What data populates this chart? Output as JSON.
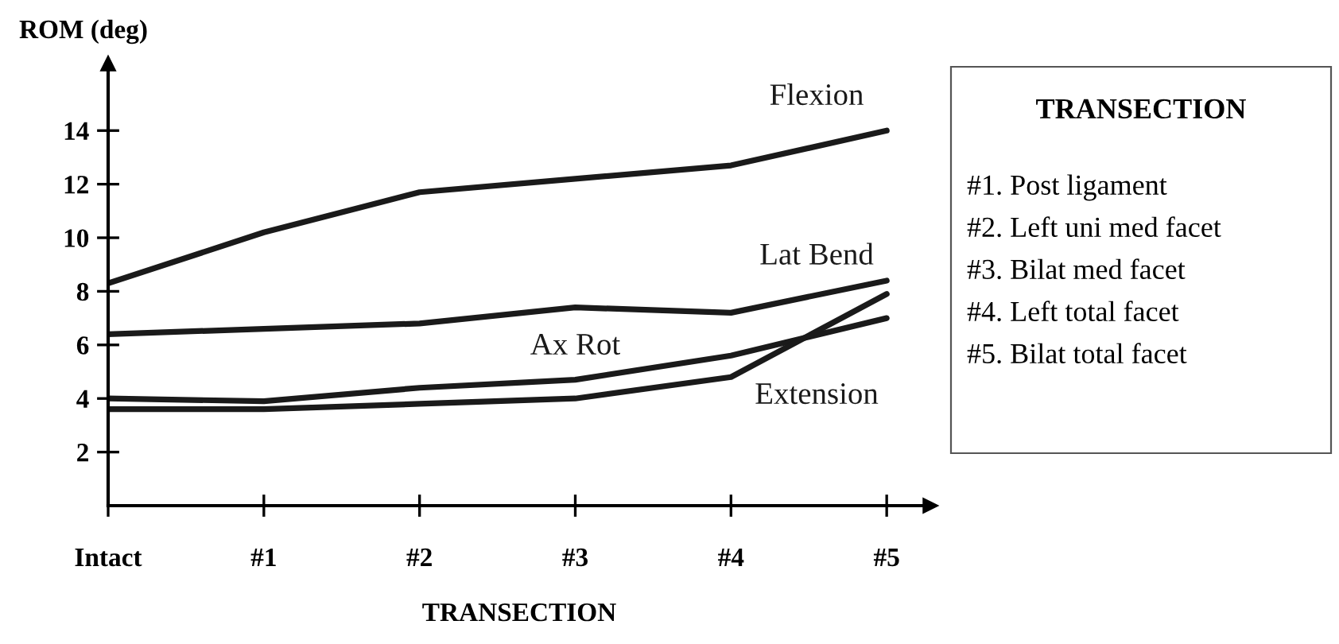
{
  "chart_data": {
    "type": "line",
    "ylabel": "ROM (deg)",
    "xlabel": "TRANSECTION",
    "categories": [
      "Intact",
      "#1",
      "#2",
      "#3",
      "#4",
      "#5"
    ],
    "ylim": [
      0,
      16.5
    ],
    "yticks": [
      2,
      4,
      6,
      8,
      10,
      12,
      14
    ],
    "grid": false,
    "legend": false,
    "marker": "none",
    "line_style": "solid",
    "series": [
      {
        "name": "Flexion",
        "color": "#1a1a1a",
        "values": [
          8.3,
          10.2,
          11.7,
          12.2,
          12.7,
          14.0
        ]
      },
      {
        "name": "Lat Bend",
        "color": "#1a1a1a",
        "values": [
          6.4,
          6.6,
          6.8,
          7.4,
          7.2,
          8.4
        ]
      },
      {
        "name": "Ax Rot",
        "color": "#1a1a1a",
        "values": [
          4.0,
          3.9,
          4.4,
          4.7,
          5.6,
          7.0
        ]
      },
      {
        "name": "Extension",
        "color": "#1a1a1a",
        "values": [
          3.6,
          3.6,
          3.8,
          4.0,
          4.8,
          7.9
        ]
      }
    ],
    "annotations": [
      "TRANSECTION",
      "#1. Post ligament",
      "#2. Left uni med facet",
      "#3. Bilat med facet",
      "#4. Left total facet",
      "#5. Bilat total facet"
    ]
  }
}
